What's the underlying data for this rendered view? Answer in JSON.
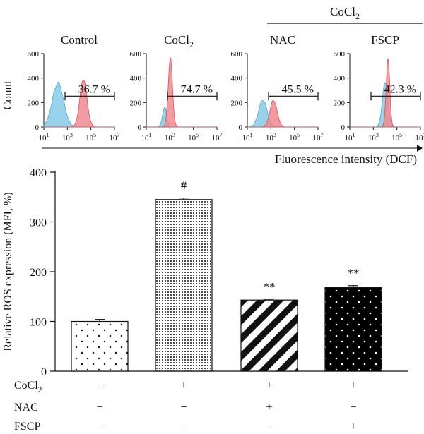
{
  "colors": {
    "control_peak": "#87cbe8",
    "treated_peak": "#f08a8f",
    "ink": "#111111"
  },
  "flow_panel": {
    "group_label": "CoCl",
    "group_label_sub": "2",
    "count_label": "Count",
    "x_axis_label": "Fluorescence intensity (DCF)",
    "y_ticks": [
      "600",
      "400",
      "200",
      "0"
    ],
    "x_ticks": [
      {
        "base": "10",
        "exp": "1"
      },
      {
        "base": "10",
        "exp": "3"
      },
      {
        "base": "10",
        "exp": "5"
      },
      {
        "base": "10",
        "exp": "7"
      }
    ],
    "panels": [
      {
        "title": "Control",
        "title_sub": "",
        "percent": "36.7 %"
      },
      {
        "title": "CoCl",
        "title_sub": "2",
        "percent": "74.7 %"
      },
      {
        "title": "NAC",
        "title_sub": "",
        "percent": "45.5 %"
      },
      {
        "title": "FSCP",
        "title_sub": "",
        "percent": "42.3 %"
      }
    ]
  },
  "chart_data": {
    "type": "bar",
    "ylabel": "Relative ROS expression (MFI, %)",
    "ylim": [
      0,
      400
    ],
    "yticks": [
      0,
      100,
      200,
      300,
      400
    ],
    "categories": [
      "Control",
      "CoCl2",
      "NAC",
      "FSCP"
    ],
    "values": [
      100,
      345,
      143,
      168
    ],
    "errors": [
      4,
      3,
      2,
      4
    ],
    "annotations": [
      "",
      "#",
      "**",
      "**"
    ],
    "patterns": [
      "sparse-dots",
      "dense-dots",
      "diagonal-stripes",
      "black-dots"
    ],
    "conditions": [
      {
        "label": "CoCl",
        "label_sub": "2",
        "values": [
          "−",
          "+",
          "+",
          "+"
        ]
      },
      {
        "label": "NAC",
        "label_sub": "",
        "values": [
          "−",
          "−",
          "+",
          "−"
        ]
      },
      {
        "label": "FSCP",
        "label_sub": "",
        "values": [
          "−",
          "−",
          "−",
          "+"
        ]
      }
    ]
  }
}
